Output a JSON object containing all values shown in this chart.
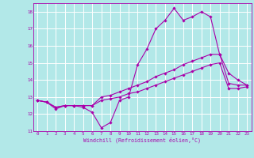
{
  "xlabel": "Windchill (Refroidissement éolien,°C)",
  "bg_color": "#b2e8e8",
  "grid_color": "#ffffff",
  "line_color": "#aa00aa",
  "xlim": [
    -0.5,
    23.5
  ],
  "ylim": [
    11,
    18.5
  ],
  "xticks": [
    0,
    1,
    2,
    3,
    4,
    5,
    6,
    7,
    8,
    9,
    10,
    11,
    12,
    13,
    14,
    15,
    16,
    17,
    18,
    19,
    20,
    21,
    22,
    23
  ],
  "yticks": [
    11,
    12,
    13,
    14,
    15,
    16,
    17,
    18
  ],
  "line1_x": [
    0,
    1,
    2,
    3,
    4,
    5,
    6,
    7,
    8,
    9,
    10,
    11,
    12,
    13,
    14,
    15,
    16,
    17,
    18,
    19,
    20,
    21,
    22,
    23
  ],
  "line1_y": [
    12.8,
    12.7,
    12.3,
    12.5,
    12.5,
    12.4,
    12.1,
    11.2,
    11.5,
    12.8,
    13.0,
    14.9,
    15.8,
    17.0,
    17.5,
    18.2,
    17.5,
    17.7,
    18.0,
    17.7,
    15.5,
    14.4,
    14.0,
    13.7
  ],
  "line2_x": [
    0,
    1,
    2,
    3,
    4,
    5,
    6,
    7,
    8,
    9,
    10,
    11,
    12,
    13,
    14,
    15,
    16,
    17,
    18,
    19,
    20,
    21,
    22,
    23
  ],
  "line2_y": [
    12.8,
    12.7,
    12.4,
    12.5,
    12.5,
    12.5,
    12.5,
    13.0,
    13.1,
    13.3,
    13.5,
    13.7,
    13.9,
    14.2,
    14.4,
    14.6,
    14.9,
    15.1,
    15.3,
    15.5,
    15.5,
    13.8,
    13.7,
    13.7
  ],
  "line3_x": [
    0,
    1,
    2,
    3,
    4,
    5,
    6,
    7,
    8,
    9,
    10,
    11,
    12,
    13,
    14,
    15,
    16,
    17,
    18,
    19,
    20,
    21,
    22,
    23
  ],
  "line3_y": [
    12.8,
    12.7,
    12.4,
    12.5,
    12.5,
    12.5,
    12.5,
    12.8,
    12.9,
    13.0,
    13.2,
    13.3,
    13.5,
    13.7,
    13.9,
    14.1,
    14.3,
    14.5,
    14.7,
    14.9,
    15.0,
    13.5,
    13.5,
    13.6
  ]
}
